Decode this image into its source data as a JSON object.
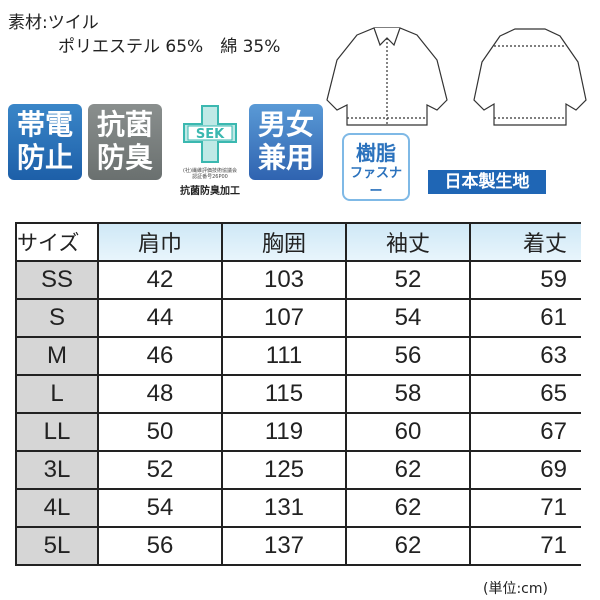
{
  "material": {
    "label": "素材:ツイル",
    "composition": "ポリエステル 65%　綿 35%"
  },
  "badges": [
    {
      "line1": "帯電",
      "line2": "防止",
      "color": "#2a74bd"
    },
    {
      "line1": "抗菌",
      "line2": "防臭",
      "color": "#7a807f"
    },
    {
      "line1": "男女",
      "line2": "兼用",
      "color": "#3f7cc4"
    }
  ],
  "sek": {
    "logo": "SEK",
    "small1": "(社)繊維評価技術協議会",
    "small2": "認証番号26P00",
    "label": "抗菌防臭加工",
    "color": "#3bb8b0"
  },
  "resin_zipper": {
    "line1": "樹脂",
    "line2": "ファスナー"
  },
  "made_in": "日本製生地",
  "icons": [
    "jacket-front-illustration",
    "jacket-back-illustration"
  ],
  "table": {
    "headers": [
      "サイズ",
      "肩巾",
      "胸囲",
      "袖丈",
      "着丈"
    ],
    "rows": [
      [
        "SS",
        "42",
        "103",
        "52",
        "59"
      ],
      [
        "S",
        "44",
        "107",
        "54",
        "61"
      ],
      [
        "M",
        "46",
        "111",
        "56",
        "63"
      ],
      [
        "L",
        "48",
        "115",
        "58",
        "65"
      ],
      [
        "LL",
        "50",
        "119",
        "60",
        "67"
      ],
      [
        "3L",
        "52",
        "125",
        "62",
        "69"
      ],
      [
        "4L",
        "54",
        "131",
        "62",
        "71"
      ],
      [
        "5L",
        "56",
        "137",
        "62",
        "71"
      ]
    ]
  },
  "unit": "(単位:cm)"
}
